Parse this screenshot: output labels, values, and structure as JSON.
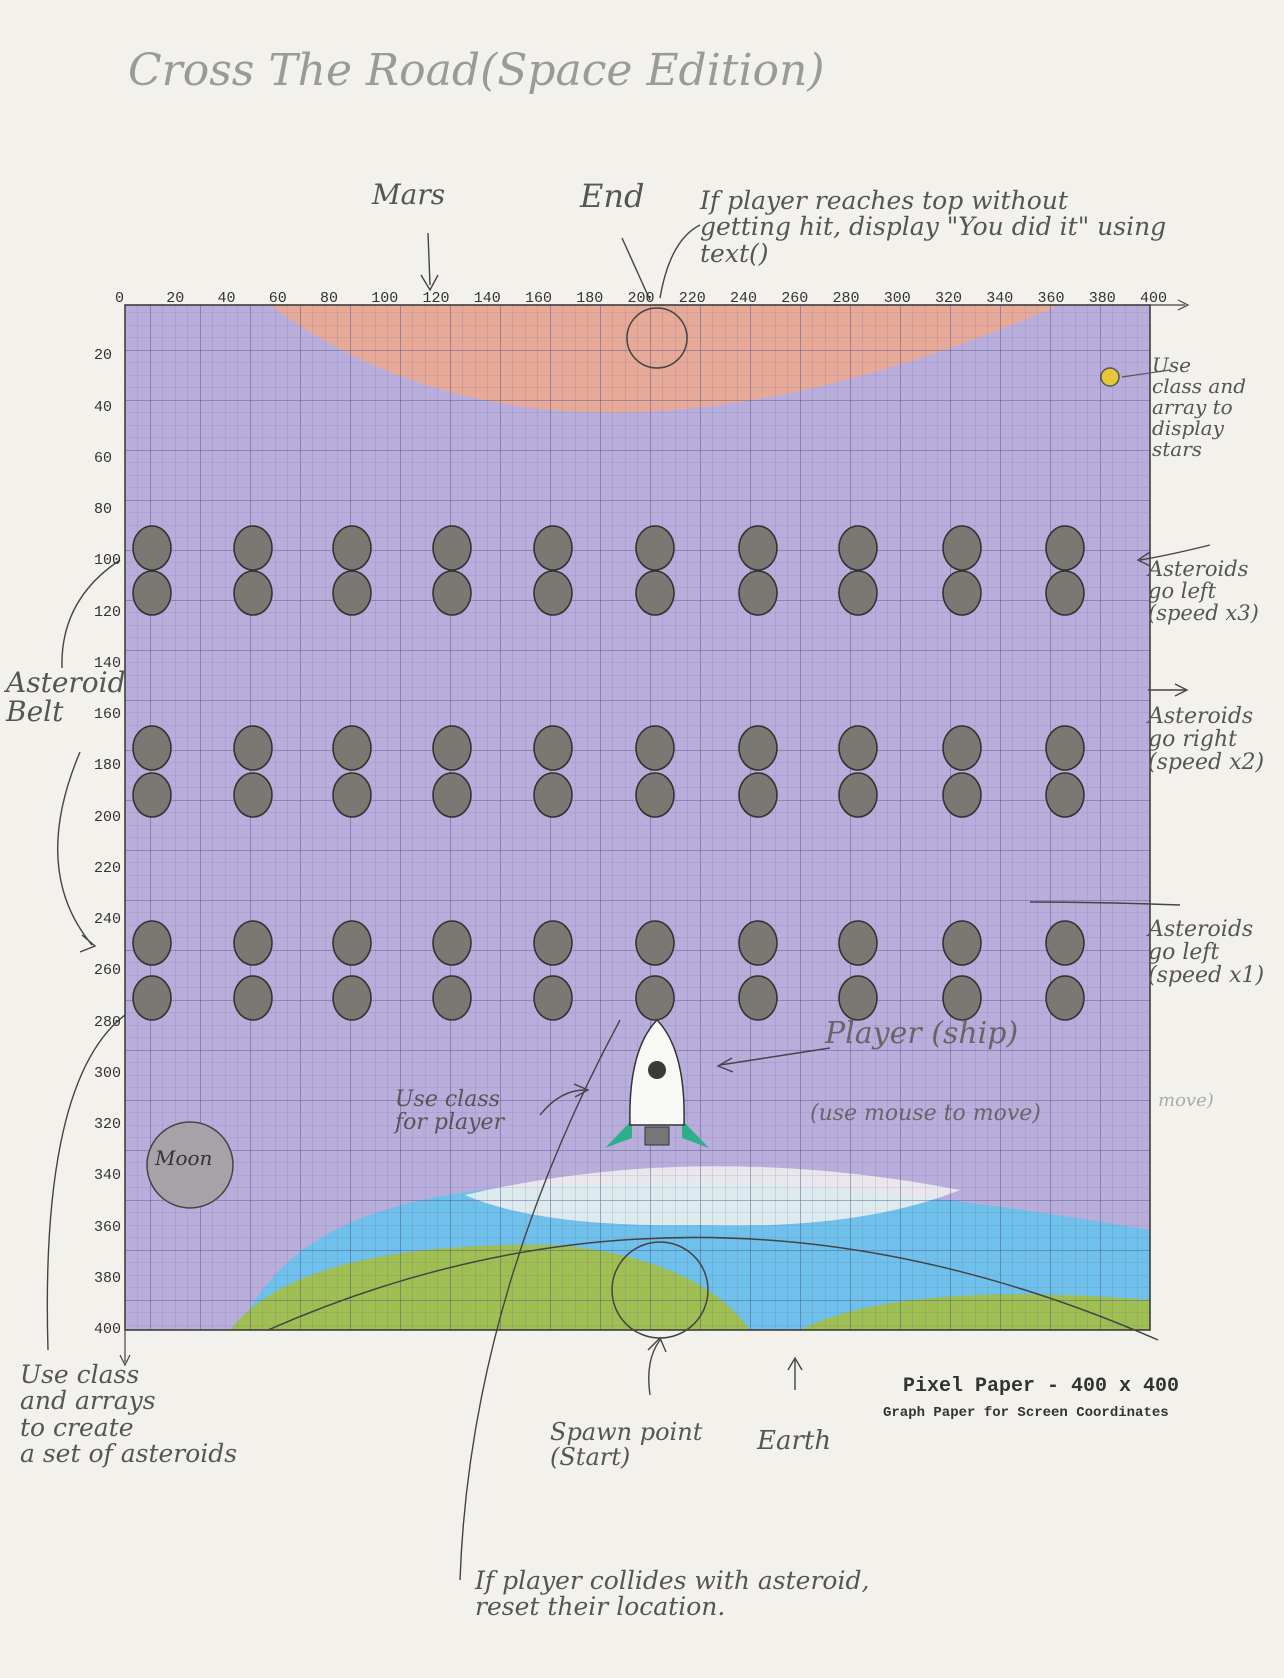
{
  "title": "Cross The Road(Space Edition)",
  "x_ticks": [
    "0",
    "20",
    "40",
    "60",
    "80",
    "100",
    "120",
    "140",
    "160",
    "180",
    "200",
    "220",
    "240",
    "260",
    "280",
    "300",
    "320",
    "340",
    "360",
    "380",
    "400"
  ],
  "y_ticks": [
    "20",
    "40",
    "60",
    "80",
    "100",
    "120",
    "140",
    "160",
    "180",
    "200",
    "220",
    "240",
    "260",
    "280",
    "300",
    "320",
    "340",
    "360",
    "380",
    "400"
  ],
  "labels": {
    "mars": "Mars",
    "end": "End",
    "end_note": "If player reaches top without\ngetting hit, display \"You did it\" using\ntext()",
    "stars_note": "Use\nclass and\narray to\ndisplay\nstars",
    "row1_note": "Asteroids\ngo left\n(speed x3)",
    "row2_note": "Asteroids\ngo right\n(speed x2)",
    "row3_note": "Asteroids\ngo left\n(speed x1)",
    "belt": "Asteroid\nBelt",
    "moon": "Moon",
    "player": "Player (ship)",
    "player_move": "(use mouse to move)",
    "move": "move)",
    "player_class": "Use class\nfor player",
    "spawn": "Spawn point\n(Start)",
    "earth": "Earth",
    "asteroid_class": "Use class\nand arrays\nto create\na set of asteroids",
    "collide_note": "If player collides with asteroid,\nreset their location."
  },
  "footer": {
    "line1": "Pixel Paper - 400 x 400",
    "line2": "Graph Paper for Screen Coordinates"
  },
  "colors": {
    "space": "#b9aedb",
    "mars": "#e8aa98",
    "earth_land": "#9fbf53",
    "earth_water": "#6fc0ea",
    "asteroid": "#7a7872",
    "star": "#e8c63a",
    "grid": "#5a5e96",
    "ship_fin": "#2fae8a"
  }
}
